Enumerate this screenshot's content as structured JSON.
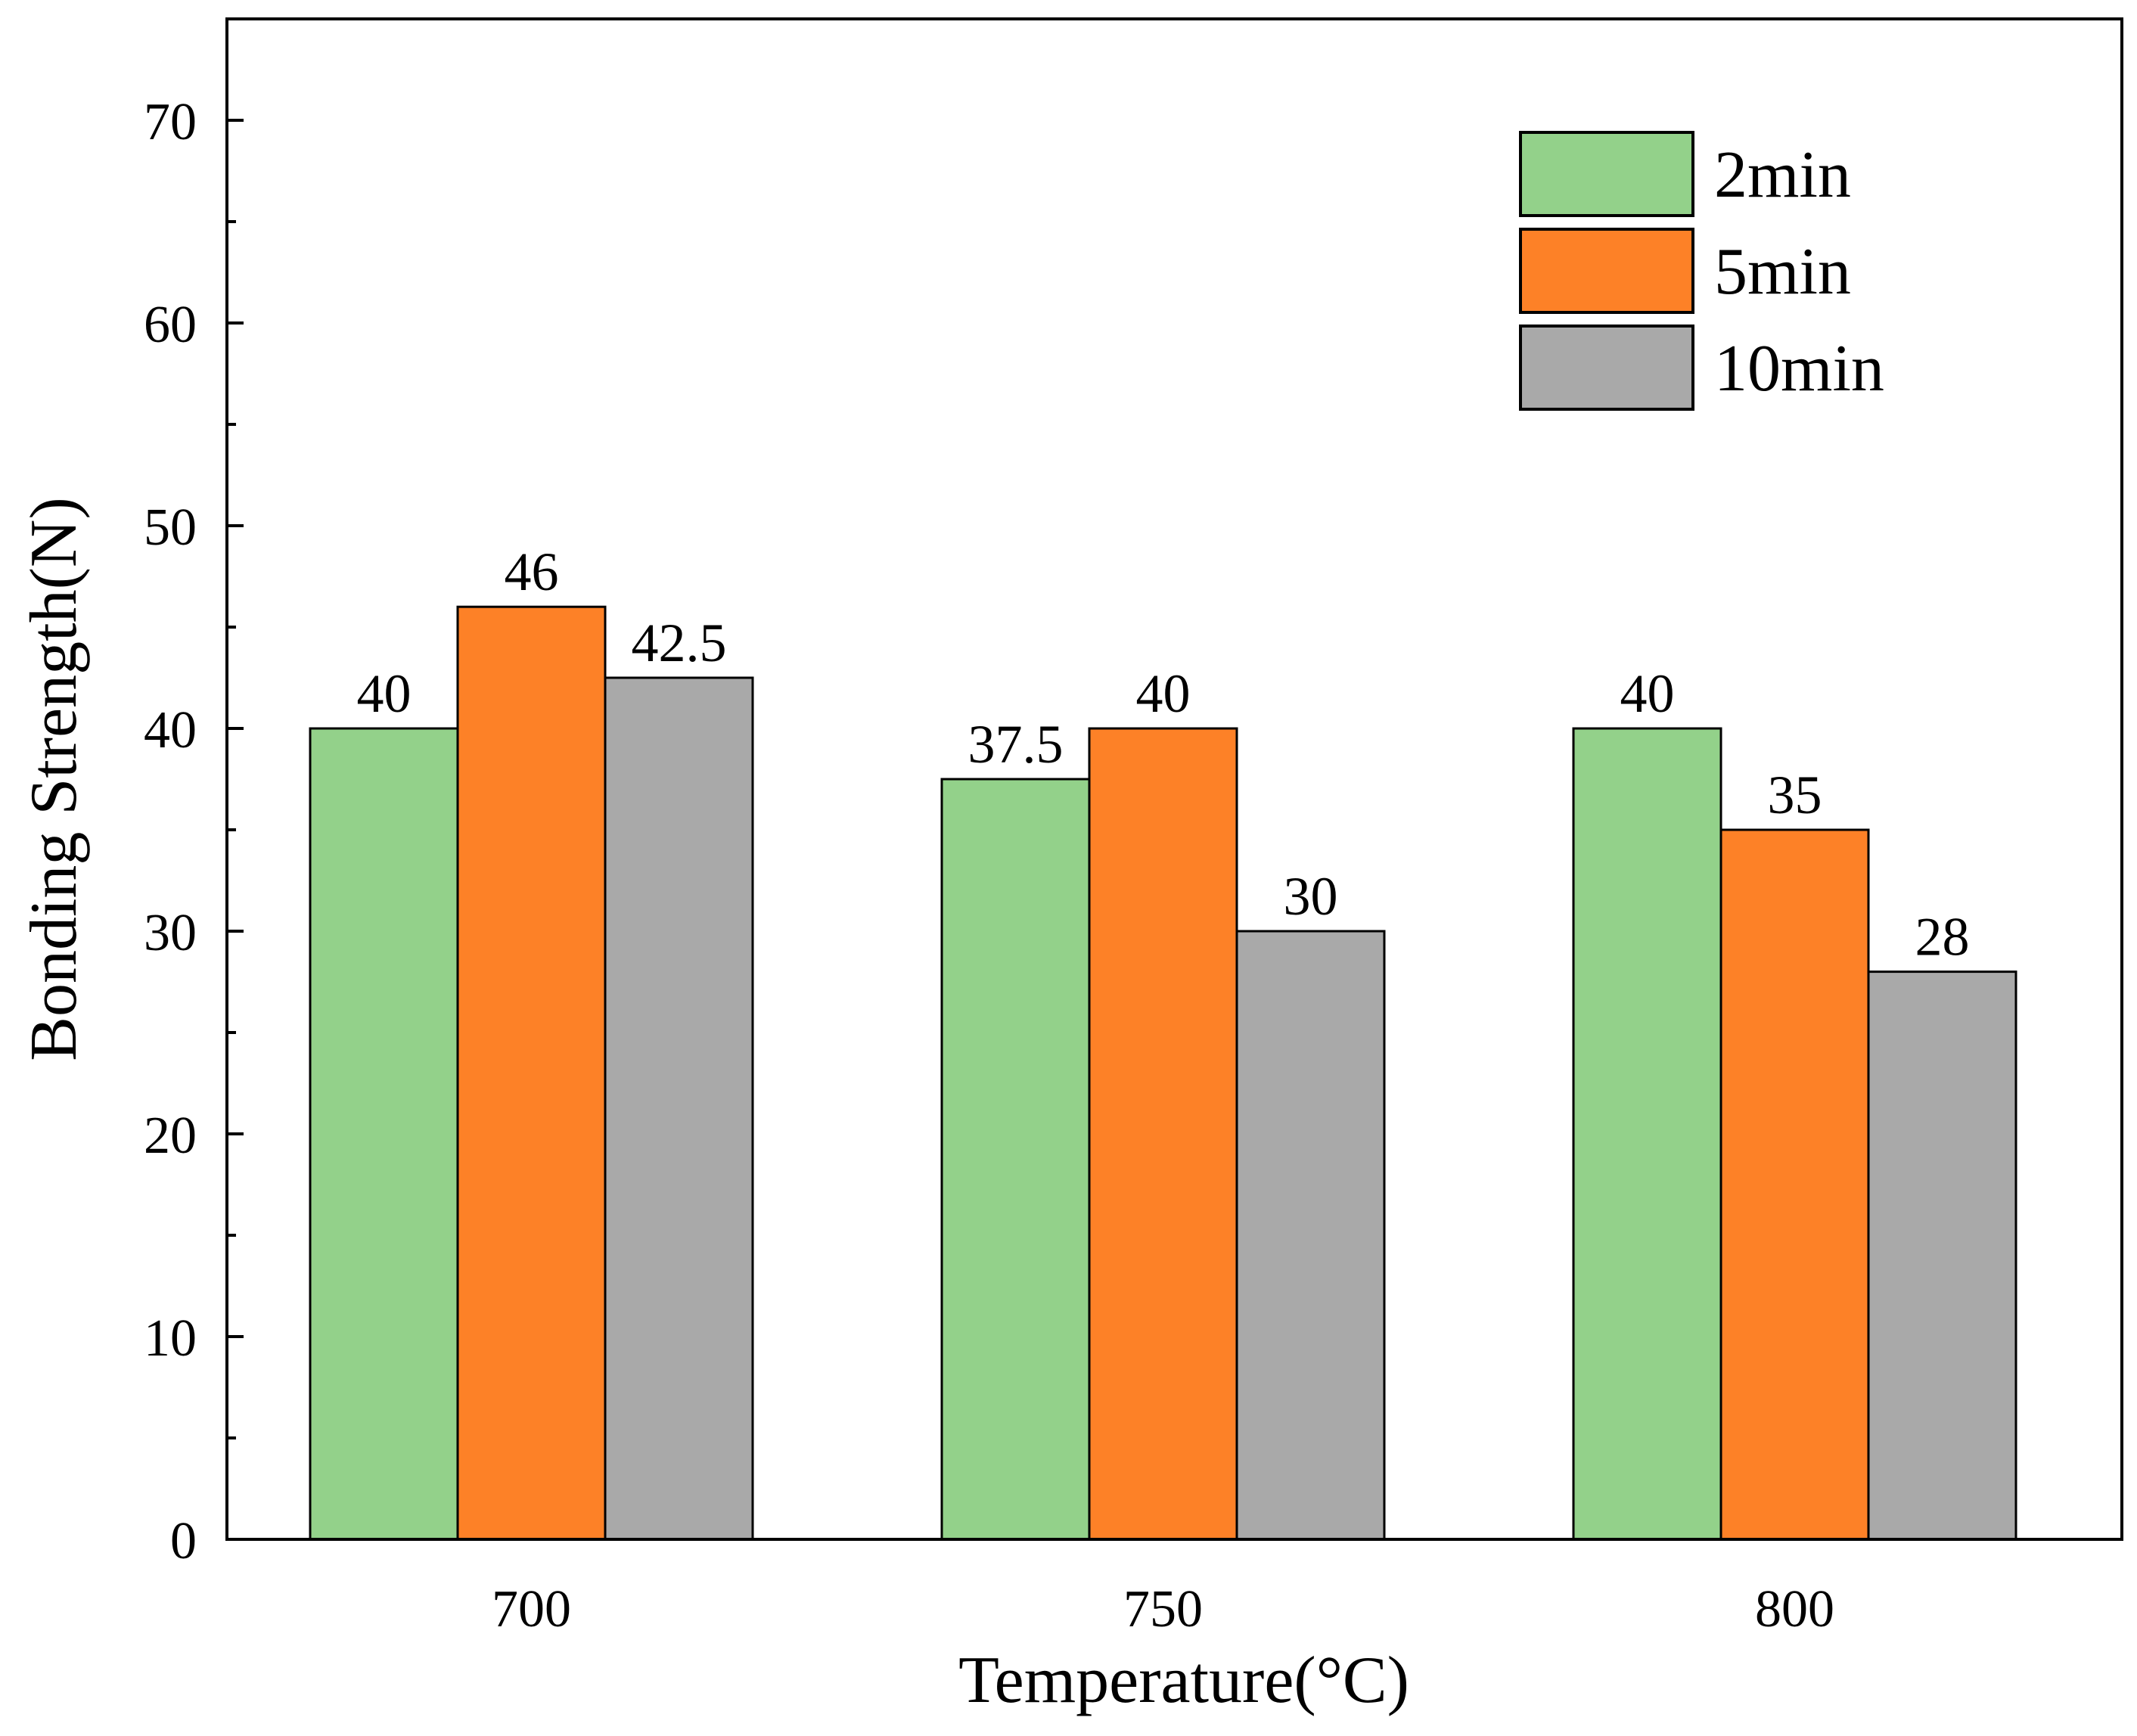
{
  "chart_data": {
    "type": "bar",
    "title": "",
    "xlabel": "Temperature(°C)",
    "ylabel": "Bonding Strength(N)",
    "categories": [
      "700",
      "750",
      "800"
    ],
    "ylim": [
      0,
      75
    ],
    "yticks": [
      0,
      10,
      20,
      30,
      40,
      50,
      60,
      70
    ],
    "ytick_labels": [
      "0",
      "10",
      "20",
      "30",
      "40",
      "50",
      "60",
      "70"
    ],
    "series": [
      {
        "name": "2min",
        "color": "#93d18a",
        "values": [
          40,
          37.5,
          40
        ],
        "labels": [
          "40",
          "37.5",
          "40"
        ]
      },
      {
        "name": "5min",
        "color": "#fd8127",
        "values": [
          46,
          40,
          35
        ],
        "labels": [
          "46",
          "40",
          "35"
        ]
      },
      {
        "name": "10min",
        "color": "#a9a9a9",
        "values": [
          42.5,
          30,
          28
        ],
        "labels": [
          "42.5",
          "30",
          "28"
        ]
      }
    ],
    "legend_position": "top-right",
    "grid": false
  }
}
